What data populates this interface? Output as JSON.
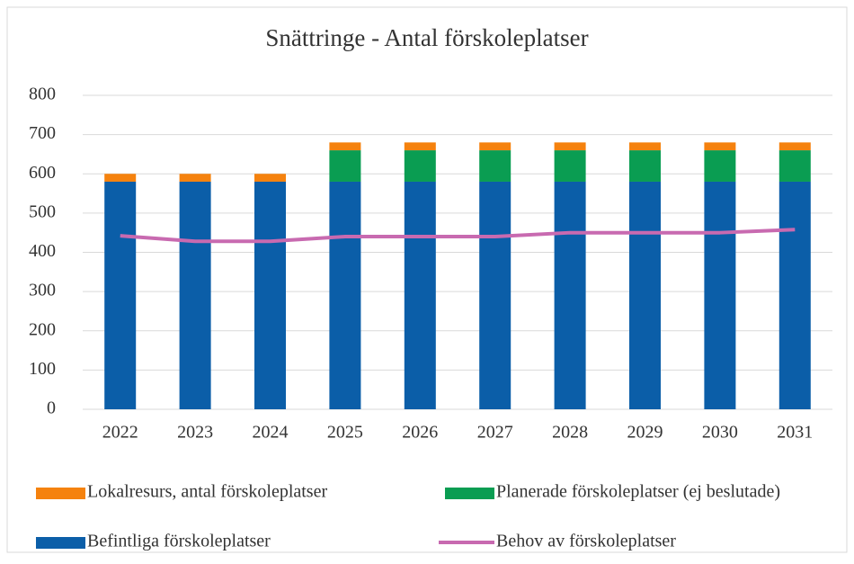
{
  "chart_data": {
    "type": "bar",
    "stacked": true,
    "title": "Snättringe - Antal förskoleplatser",
    "categories": [
      "2022",
      "2023",
      "2024",
      "2025",
      "2026",
      "2027",
      "2028",
      "2029",
      "2030",
      "2031"
    ],
    "series": [
      {
        "name": "Befintliga förskoleplatser",
        "color": "#0b5ea8",
        "type": "bar",
        "values": [
          580,
          580,
          580,
          580,
          580,
          580,
          580,
          580,
          580,
          580
        ]
      },
      {
        "name": "Planerade förskoleplatser (ej beslutade)",
        "color": "#0a9d52",
        "type": "bar",
        "values": [
          0,
          0,
          0,
          80,
          80,
          80,
          80,
          80,
          80,
          80
        ]
      },
      {
        "name": "Lokalresurs, antal förskoleplatser",
        "color": "#f5820e",
        "type": "bar",
        "values": [
          20,
          20,
          20,
          20,
          20,
          20,
          20,
          20,
          20,
          20
        ]
      },
      {
        "name": "Behov av förskoleplatser",
        "color": "#c86ab0",
        "type": "line",
        "values": [
          442,
          428,
          428,
          440,
          440,
          440,
          450,
          450,
          450,
          458
        ]
      }
    ],
    "ylim": [
      0,
      800
    ],
    "yticks": [
      0,
      100,
      200,
      300,
      400,
      500,
      600,
      700,
      800
    ],
    "grid": true,
    "legend": "bottom"
  }
}
